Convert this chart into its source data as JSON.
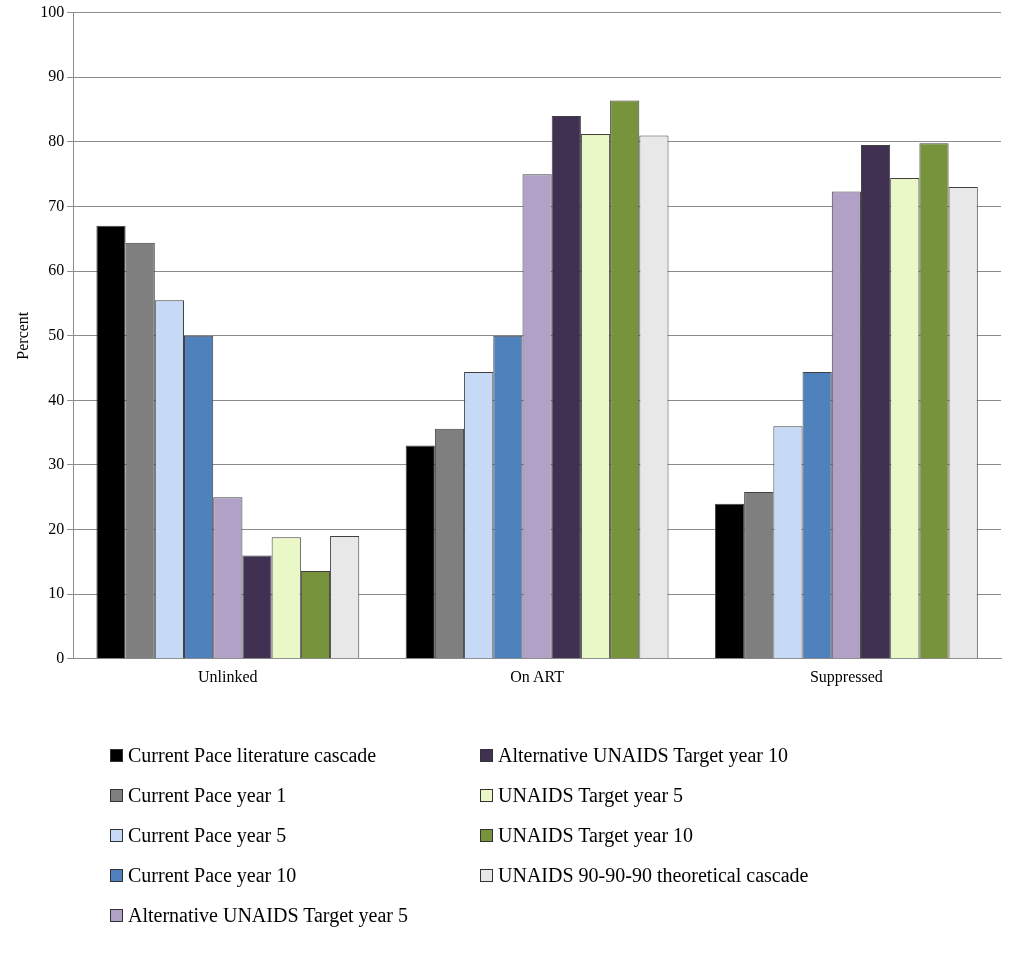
{
  "chart_data": {
    "type": "bar",
    "ylabel": "Percent",
    "categories": [
      "Unlinked",
      "On ART",
      "Suppressed"
    ],
    "ylim": [
      0,
      100
    ],
    "yticks": [
      0,
      10,
      20,
      30,
      40,
      50,
      60,
      70,
      80,
      90,
      100
    ],
    "grid": "y",
    "legend": "bottom",
    "series": [
      {
        "name": "Current Pace literature cascade",
        "color": "#000000",
        "values": [
          67,
          33,
          24
        ]
      },
      {
        "name": "Current Pace year 1",
        "color": "#7f7f7f",
        "values": [
          64.4,
          35.6,
          25.8
        ]
      },
      {
        "name": "Current Pace year 5",
        "color": "#c6d9f7",
        "values": [
          55.5,
          44.4,
          36
        ]
      },
      {
        "name": "Current Pace year 10",
        "color": "#4f81bd",
        "values": [
          50,
          50,
          44.4
        ]
      },
      {
        "name": "Alternative UNAIDS Target year 5",
        "color": "#b2a1c7",
        "values": [
          25,
          75,
          72.3
        ]
      },
      {
        "name": "Alternative UNAIDS Target year 10",
        "color": "#403152",
        "values": [
          16,
          84,
          79.5
        ]
      },
      {
        "name": "UNAIDS Target year 5",
        "color": "#eaf8c8",
        "values": [
          18.8,
          81.2,
          74.4
        ]
      },
      {
        "name": "UNAIDS Target year 10",
        "color": "#77933c",
        "values": [
          13.6,
          86.4,
          79.8
        ]
      },
      {
        "name": "UNAIDS 90-90-90 theoretical cascade",
        "color": "#e8e8e8",
        "values": [
          19,
          81,
          73
        ]
      }
    ]
  }
}
